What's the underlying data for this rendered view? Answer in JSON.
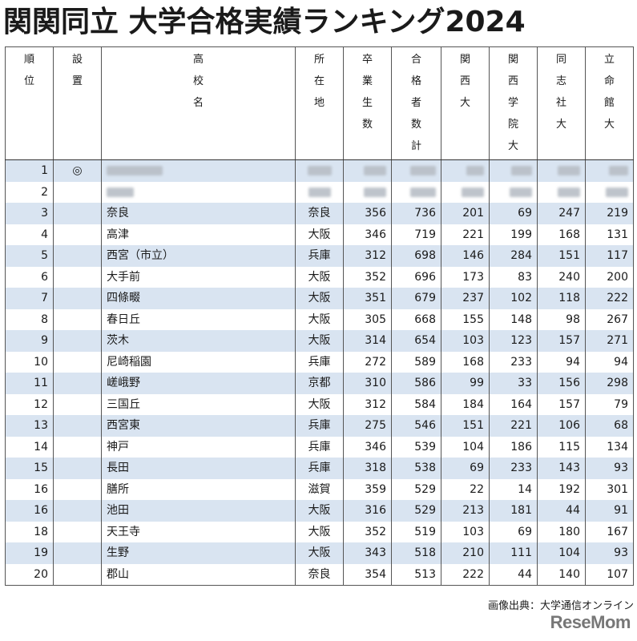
{
  "title": "関関同立 大学合格実績ランキング2024",
  "headers": {
    "rank": [
      "順",
      "位"
    ],
    "established": [
      "設",
      "置"
    ],
    "school": [
      "高",
      "校",
      "名"
    ],
    "location": [
      "所",
      "在",
      "地"
    ],
    "graduates": [
      "卒",
      "業",
      "生",
      "数"
    ],
    "passers_total": [
      "合",
      "格",
      "者",
      "数",
      "計"
    ],
    "kansai": [
      "関",
      "西",
      "大"
    ],
    "kwansei": [
      "関",
      "西",
      "学",
      "院",
      "大"
    ],
    "doshisha": [
      "同",
      "志",
      "社",
      "大"
    ],
    "ritsumeikan": [
      "立",
      "命",
      "館",
      "大"
    ]
  },
  "rows": [
    {
      "rank": "1",
      "established": "◎",
      "school": "",
      "location": "",
      "graduates": "",
      "total": "",
      "kansai": "",
      "kwansei": "",
      "doshisha": "",
      "ritsumeikan": ""
    },
    {
      "rank": "2",
      "established": "",
      "school": "",
      "location": "",
      "graduates": "",
      "total": "",
      "kansai": "",
      "kwansei": "",
      "doshisha": "",
      "ritsumeikan": ""
    },
    {
      "rank": "3",
      "established": "",
      "school": "奈良",
      "location": "奈良",
      "graduates": "356",
      "total": "736",
      "kansai": "201",
      "kwansei": "69",
      "doshisha": "247",
      "ritsumeikan": "219"
    },
    {
      "rank": "4",
      "established": "",
      "school": "高津",
      "location": "大阪",
      "graduates": "346",
      "total": "719",
      "kansai": "221",
      "kwansei": "199",
      "doshisha": "168",
      "ritsumeikan": "131"
    },
    {
      "rank": "5",
      "established": "",
      "school": "西宮（市立）",
      "location": "兵庫",
      "graduates": "312",
      "total": "698",
      "kansai": "146",
      "kwansei": "284",
      "doshisha": "151",
      "ritsumeikan": "117"
    },
    {
      "rank": "6",
      "established": "",
      "school": "大手前",
      "location": "大阪",
      "graduates": "352",
      "total": "696",
      "kansai": "173",
      "kwansei": "83",
      "doshisha": "240",
      "ritsumeikan": "200"
    },
    {
      "rank": "7",
      "established": "",
      "school": "四條畷",
      "location": "大阪",
      "graduates": "351",
      "total": "679",
      "kansai": "237",
      "kwansei": "102",
      "doshisha": "118",
      "ritsumeikan": "222"
    },
    {
      "rank": "8",
      "established": "",
      "school": "春日丘",
      "location": "大阪",
      "graduates": "305",
      "total": "668",
      "kansai": "155",
      "kwansei": "148",
      "doshisha": "98",
      "ritsumeikan": "267"
    },
    {
      "rank": "9",
      "established": "",
      "school": "茨木",
      "location": "大阪",
      "graduates": "314",
      "total": "654",
      "kansai": "103",
      "kwansei": "123",
      "doshisha": "157",
      "ritsumeikan": "271"
    },
    {
      "rank": "10",
      "established": "",
      "school": "尼崎稲園",
      "location": "兵庫",
      "graduates": "272",
      "total": "589",
      "kansai": "168",
      "kwansei": "233",
      "doshisha": "94",
      "ritsumeikan": "94"
    },
    {
      "rank": "11",
      "established": "",
      "school": "嵯峨野",
      "location": "京都",
      "graduates": "310",
      "total": "586",
      "kansai": "99",
      "kwansei": "33",
      "doshisha": "156",
      "ritsumeikan": "298"
    },
    {
      "rank": "12",
      "established": "",
      "school": "三国丘",
      "location": "大阪",
      "graduates": "312",
      "total": "584",
      "kansai": "184",
      "kwansei": "164",
      "doshisha": "157",
      "ritsumeikan": "79"
    },
    {
      "rank": "13",
      "established": "",
      "school": "西宮東",
      "location": "兵庫",
      "graduates": "275",
      "total": "546",
      "kansai": "151",
      "kwansei": "221",
      "doshisha": "106",
      "ritsumeikan": "68"
    },
    {
      "rank": "14",
      "established": "",
      "school": "神戸",
      "location": "兵庫",
      "graduates": "346",
      "total": "539",
      "kansai": "104",
      "kwansei": "186",
      "doshisha": "115",
      "ritsumeikan": "134"
    },
    {
      "rank": "15",
      "established": "",
      "school": "長田",
      "location": "兵庫",
      "graduates": "318",
      "total": "538",
      "kansai": "69",
      "kwansei": "233",
      "doshisha": "143",
      "ritsumeikan": "93"
    },
    {
      "rank": "16",
      "established": "",
      "school": "膳所",
      "location": "滋賀",
      "graduates": "359",
      "total": "529",
      "kansai": "22",
      "kwansei": "14",
      "doshisha": "192",
      "ritsumeikan": "301"
    },
    {
      "rank": "16",
      "established": "",
      "school": "池田",
      "location": "大阪",
      "graduates": "316",
      "total": "529",
      "kansai": "213",
      "kwansei": "181",
      "doshisha": "44",
      "ritsumeikan": "91"
    },
    {
      "rank": "18",
      "established": "",
      "school": "天王寺",
      "location": "大阪",
      "graduates": "352",
      "total": "519",
      "kansai": "103",
      "kwansei": "69",
      "doshisha": "180",
      "ritsumeikan": "167"
    },
    {
      "rank": "19",
      "established": "",
      "school": "生野",
      "location": "大阪",
      "graduates": "343",
      "total": "518",
      "kansai": "210",
      "kwansei": "111",
      "doshisha": "104",
      "ritsumeikan": "93"
    },
    {
      "rank": "20",
      "established": "",
      "school": "郡山",
      "location": "奈良",
      "graduates": "354",
      "total": "513",
      "kansai": "222",
      "kwansei": "44",
      "doshisha": "140",
      "ritsumeikan": "107"
    }
  ],
  "credit": "画像出典：大学通信オンライン",
  "logo": "ReseMom",
  "colors": {
    "stripe": "#d9e4f1",
    "border": "#555555"
  }
}
